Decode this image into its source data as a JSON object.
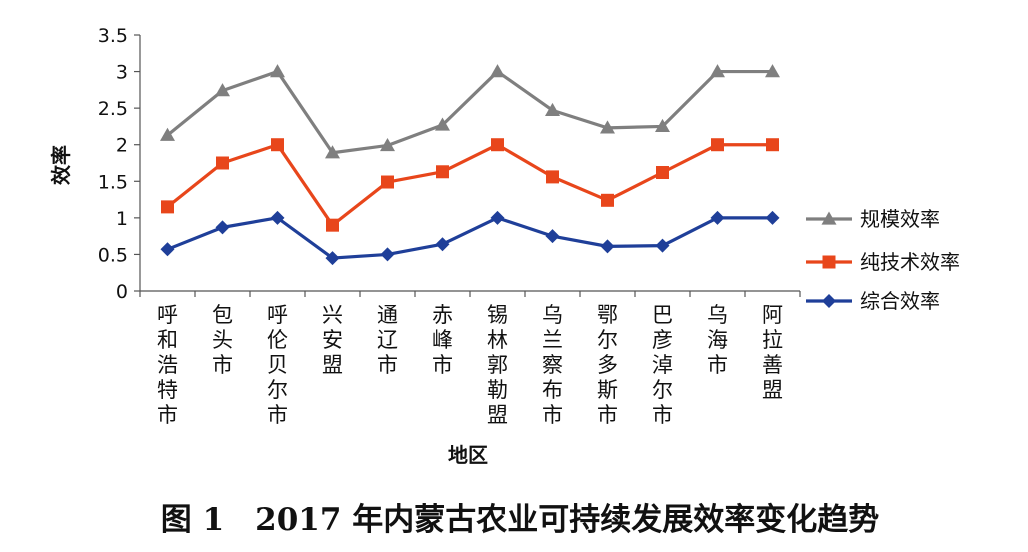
{
  "chart_data": {
    "type": "line",
    "categories": [
      "呼和浩特市",
      "包头市",
      "呼伦贝尔市",
      "兴安盟",
      "通辽市",
      "赤峰市",
      "锡林郭勒盟",
      "乌兰察布市",
      "鄂尔多斯市",
      "巴彦淖尔市",
      "乌海市",
      "阿拉善盟"
    ],
    "series": [
      {
        "name": "规模效率",
        "color": "#7f7f7f",
        "marker": "triangle",
        "values": [
          2.13,
          2.74,
          3.0,
          1.89,
          1.99,
          2.27,
          3.0,
          2.47,
          2.23,
          2.25,
          3.0,
          3.0
        ]
      },
      {
        "name": "纯技术效率",
        "color": "#e8461b",
        "marker": "square",
        "values": [
          1.15,
          1.75,
          2.0,
          0.9,
          1.49,
          1.63,
          2.0,
          1.56,
          1.24,
          1.62,
          2.0,
          2.0
        ]
      },
      {
        "name": "综合效率",
        "color": "#1f3f99",
        "marker": "diamond",
        "values": [
          0.57,
          0.87,
          1.0,
          0.45,
          0.5,
          0.64,
          1.0,
          0.75,
          0.61,
          0.62,
          1.0,
          1.0
        ]
      }
    ],
    "ylabel": "效率",
    "xlabel": "地区",
    "ylim": [
      0,
      3.5
    ],
    "yticks": [
      "0",
      "0.5",
      "1",
      "1.5",
      "2",
      "2.5",
      "3",
      "3.5"
    ],
    "grid": false,
    "legend_position": "right"
  },
  "caption": "图 1　2017 年内蒙古农业可持续发展效率变化趋势"
}
